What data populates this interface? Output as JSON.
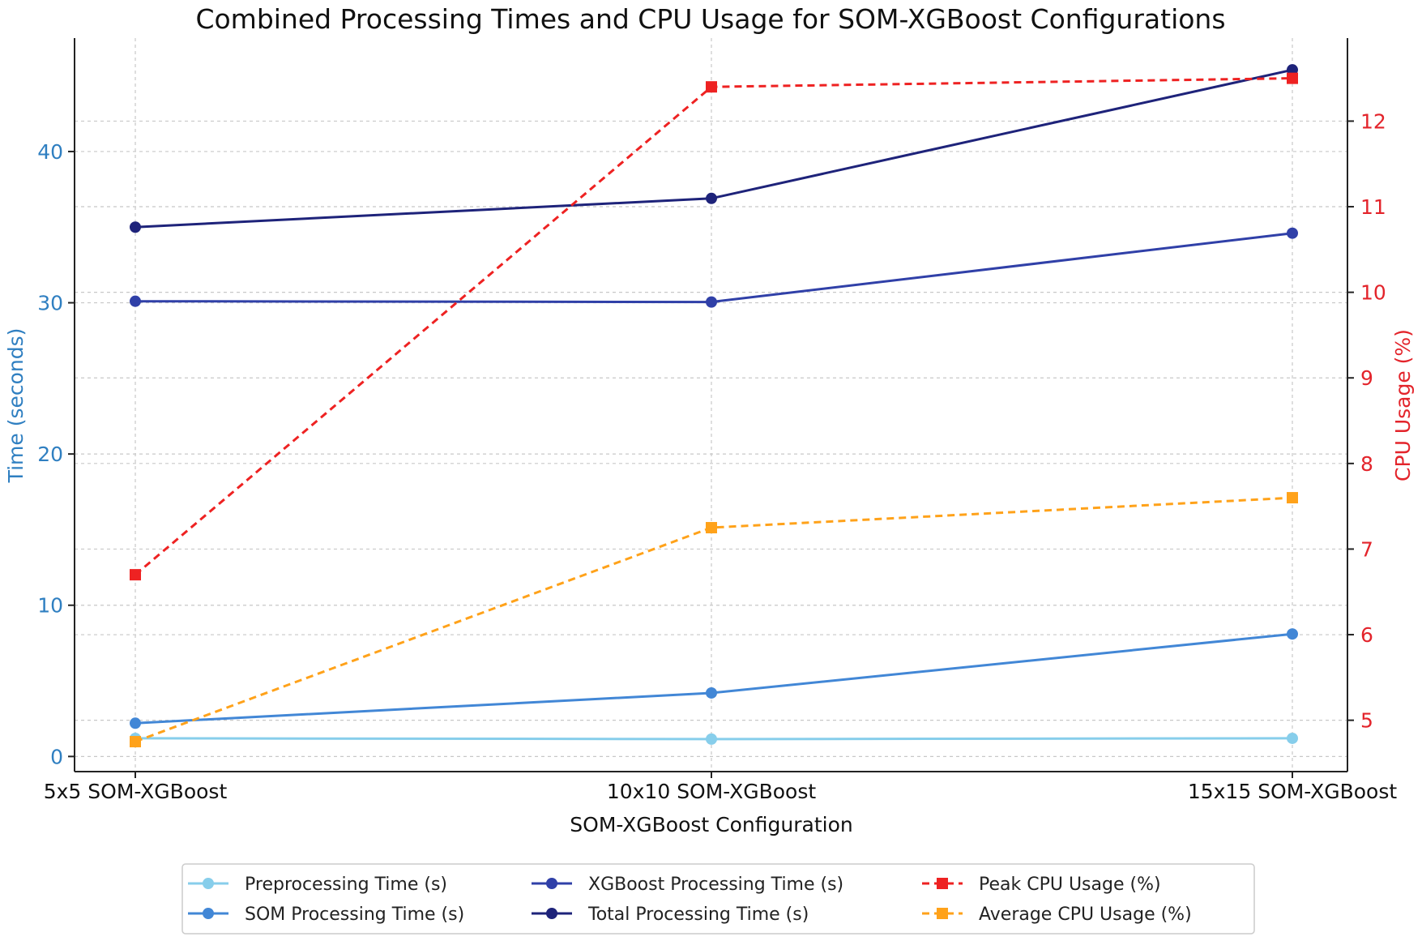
{
  "chart_data": {
    "type": "line",
    "title": "Combined Processing Times and CPU Usage for SOM-XGBoost Configurations",
    "xlabel": "SOM-XGBoost Configuration",
    "ylabel_left": "Time (seconds)",
    "ylabel_right": "CPU Usage (%)",
    "categories": [
      "5x5 SOM-XGBoost",
      "10x10 SOM-XGBoost",
      "15x15 SOM-XGBoost"
    ],
    "ylim_left": [
      -1.0,
      47.5
    ],
    "ylim_right": [
      4.4,
      12.97
    ],
    "yticks_left": [
      0,
      10,
      20,
      30,
      40
    ],
    "yticks_right": [
      5,
      6,
      7,
      8,
      9,
      10,
      11,
      12
    ],
    "grid": true,
    "series": [
      {
        "name": "Preprocessing Time (s)",
        "axis": "left",
        "color": "#87ceeb",
        "style": "solid",
        "marker": "circle",
        "values": [
          1.2,
          1.15,
          1.2
        ]
      },
      {
        "name": "SOM Processing Time (s)",
        "axis": "left",
        "color": "#4287d6",
        "style": "solid",
        "marker": "circle",
        "values": [
          2.2,
          4.2,
          8.1
        ]
      },
      {
        "name": "XGBoost Processing Time (s)",
        "axis": "left",
        "color": "#3040a8",
        "style": "solid",
        "marker": "circle",
        "values": [
          30.1,
          30.05,
          34.6
        ]
      },
      {
        "name": "Total Processing Time (s)",
        "axis": "left",
        "color": "#1e237a",
        "style": "solid",
        "marker": "circle",
        "values": [
          35.0,
          36.9,
          45.4
        ]
      },
      {
        "name": "Peak CPU Usage (%)",
        "axis": "right",
        "color": "#ee2222",
        "style": "dashed",
        "marker": "square",
        "values": [
          6.7,
          12.4,
          12.5
        ]
      },
      {
        "name": "Average CPU Usage (%)",
        "axis": "right",
        "color": "#ffa21a",
        "style": "dashed",
        "marker": "square",
        "values": [
          4.75,
          7.25,
          7.6
        ]
      }
    ],
    "legend_position": "bottom-center",
    "colors": {
      "left_axis": "#2f7fc1",
      "right_axis": "#e3242b",
      "grid": "#c8c8c8",
      "axis_line": "#222222"
    }
  }
}
